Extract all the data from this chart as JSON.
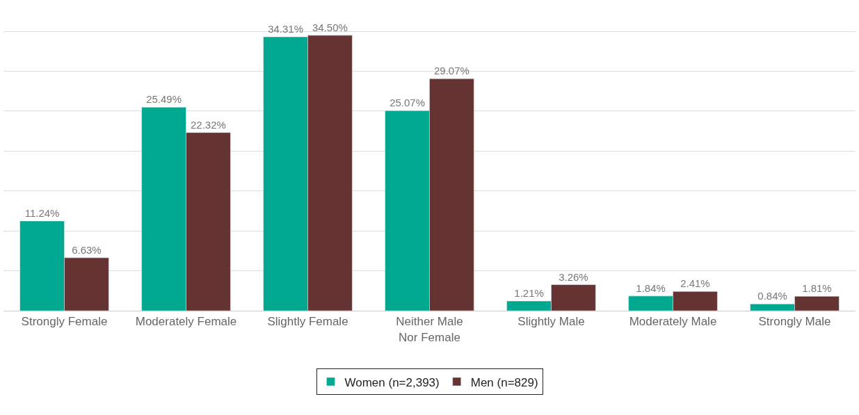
{
  "chart_data": {
    "type": "bar",
    "categories": [
      "Strongly Female",
      "Moderately Female",
      "Slightly Female",
      "Neither Male\nNor Female",
      "Slightly Male",
      "Moderately Male",
      "Strongly Male"
    ],
    "series": [
      {
        "name": "Women (n=2,393)",
        "color": "#00a88f",
        "values": [
          11.24,
          25.49,
          34.31,
          25.07,
          1.21,
          1.84,
          0.84
        ],
        "value_labels": [
          "11.24%",
          "25.49%",
          "34.31%",
          "25.07%",
          "1.21%",
          "1.84%",
          "0.84%"
        ]
      },
      {
        "name": "Men (n=829)",
        "color": "#663333",
        "values": [
          6.63,
          22.32,
          34.5,
          29.07,
          3.26,
          2.41,
          1.81
        ],
        "value_labels": [
          "6.63%",
          "22.32%",
          "34.50%",
          "29.07%",
          "3.26%",
          "2.41%",
          "1.81%"
        ]
      }
    ],
    "tick_labels": "x",
    "grid": "y",
    "legend": "bottom"
  }
}
